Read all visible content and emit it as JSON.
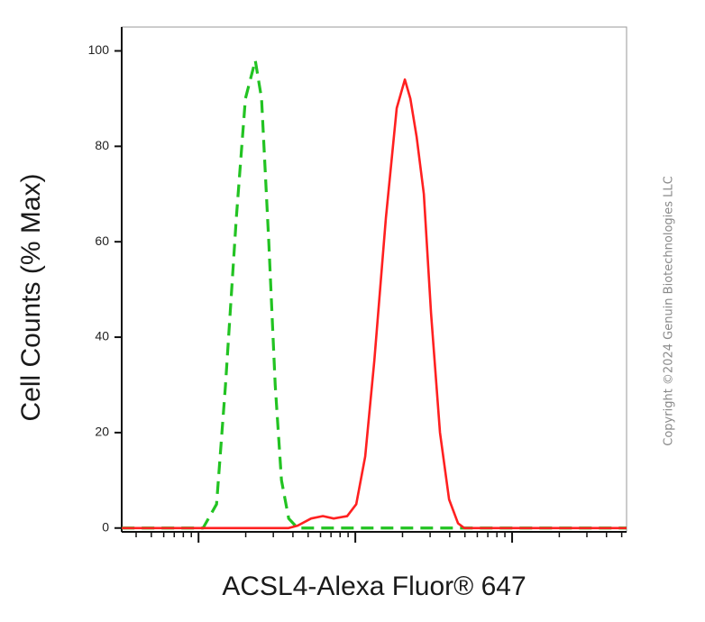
{
  "chart_data": {
    "type": "line",
    "xlabel": "ACSL4-Alexa Fluor® 647",
    "ylabel": "Cell Counts (% Max)",
    "watermark": "Copyright ©2024 Genuin Biotechnologies LLC",
    "xlim": [
      0.51,
      3.73
    ],
    "xticks": [
      1,
      2,
      3
    ],
    "xminorticks": [
      0.602,
      0.699,
      0.778,
      0.845,
      0.903,
      0.954,
      1.301,
      1.477,
      1.602,
      1.699,
      1.778,
      1.845,
      1.903,
      1.954,
      2.301,
      2.477,
      2.602,
      2.699,
      2.778,
      2.845,
      2.903,
      2.954,
      3.301,
      3.477,
      3.602,
      3.699
    ],
    "ylim": [
      -0.8,
      105
    ],
    "yticks": [
      0,
      20,
      40,
      60,
      80,
      100
    ],
    "series": [
      {
        "color": "#22c322",
        "dashed": true,
        "x": [
          0.511,
          1.029,
          1.115,
          1.172,
          1.241,
          1.299,
          1.362,
          1.402,
          1.448,
          1.489,
          1.529,
          1.575,
          1.632,
          3.73
        ],
        "values": [
          0,
          0,
          5,
          30,
          65,
          90,
          98,
          90,
          60,
          30,
          10,
          2,
          0,
          0
        ]
      },
      {
        "color": "#ff2020",
        "dashed": false,
        "x": [
          0.511,
          1.575,
          1.632,
          1.718,
          1.793,
          1.862,
          1.948,
          2.006,
          2.063,
          2.121,
          2.195,
          2.264,
          2.316,
          2.351,
          2.391,
          2.437,
          2.483,
          2.54,
          2.598,
          2.655,
          2.695,
          3.73
        ],
        "values": [
          0,
          0,
          0.5,
          2,
          2.5,
          2,
          2.5,
          5,
          15,
          35,
          65,
          88,
          94,
          90,
          82,
          70,
          45,
          20,
          6,
          1,
          0,
          0
        ]
      }
    ]
  }
}
